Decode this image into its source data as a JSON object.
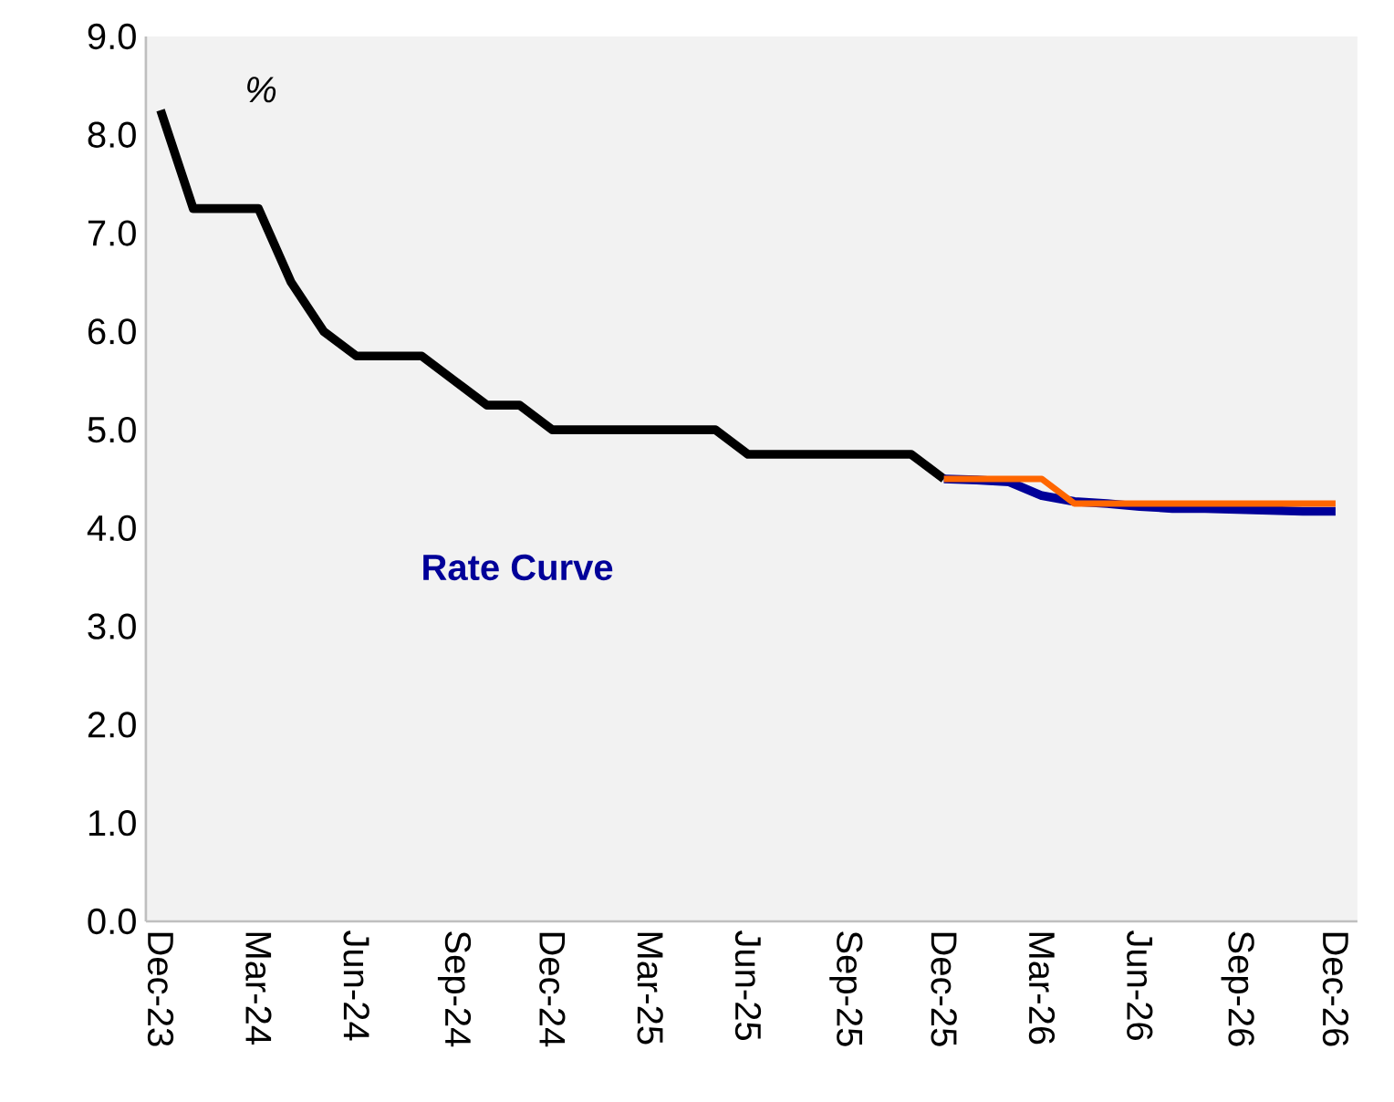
{
  "chart_data": {
    "type": "line",
    "categories": [
      "Dec-23",
      null,
      null,
      "Mar-24",
      null,
      null,
      "Jun-24",
      null,
      null,
      "Sep-24",
      null,
      null,
      "Dec-24",
      null,
      null,
      "Mar-25",
      null,
      null,
      "Jun-25",
      null,
      null,
      "Sep-25",
      null,
      null,
      "Dec-25",
      null,
      null,
      "Mar-26",
      null,
      null,
      "Jun-26",
      null,
      null,
      "Sep-26",
      null,
      null,
      "Dec-26"
    ],
    "series": [
      {
        "color": "#000000",
        "values": [
          8.25,
          7.25,
          7.25,
          7.25,
          6.5,
          6.0,
          5.75,
          5.75,
          5.75,
          5.5,
          5.25,
          5.25,
          5.0,
          5.0,
          5.0,
          5.0,
          5.0,
          5.0,
          4.75,
          4.75,
          4.75,
          4.75,
          4.75,
          4.75,
          4.5,
          null,
          null,
          null,
          null,
          null,
          null,
          null,
          null,
          null,
          null,
          null,
          null
        ]
      },
      {
        "name": "Rate Curve",
        "color": "#000099",
        "values": [
          null,
          null,
          null,
          null,
          null,
          null,
          null,
          null,
          null,
          null,
          null,
          null,
          null,
          null,
          null,
          null,
          null,
          null,
          null,
          null,
          null,
          null,
          null,
          null,
          4.5,
          4.49,
          4.47,
          4.33,
          4.27,
          4.25,
          4.22,
          4.2,
          4.2,
          4.19,
          4.18,
          4.17,
          4.17
        ]
      },
      {
        "color": "#ff6600",
        "values": [
          null,
          null,
          null,
          null,
          null,
          null,
          null,
          null,
          null,
          null,
          null,
          null,
          null,
          null,
          null,
          null,
          null,
          null,
          null,
          null,
          null,
          null,
          null,
          null,
          4.5,
          4.5,
          4.5,
          4.5,
          4.25,
          4.25,
          4.25,
          4.25,
          4.25,
          4.25,
          4.25,
          4.25,
          4.25
        ]
      }
    ],
    "ylim": [
      0,
      9
    ],
    "yticks": [
      {
        "value": 0,
        "label": "0.0"
      },
      {
        "value": 1,
        "label": "1.0"
      },
      {
        "value": 2,
        "label": "2.0"
      },
      {
        "value": 3,
        "label": "3.0"
      },
      {
        "value": 4,
        "label": "4.0"
      },
      {
        "value": 5,
        "label": "5.0"
      },
      {
        "value": 6,
        "label": "6.0"
      },
      {
        "value": 7,
        "label": "7.0"
      },
      {
        "value": 8,
        "label": "8.0"
      },
      {
        "value": 9,
        "label": "9.0"
      }
    ],
    "annotations": [
      "%"
    ],
    "legend": "left",
    "marker": "none",
    "line_style": "solid"
  }
}
